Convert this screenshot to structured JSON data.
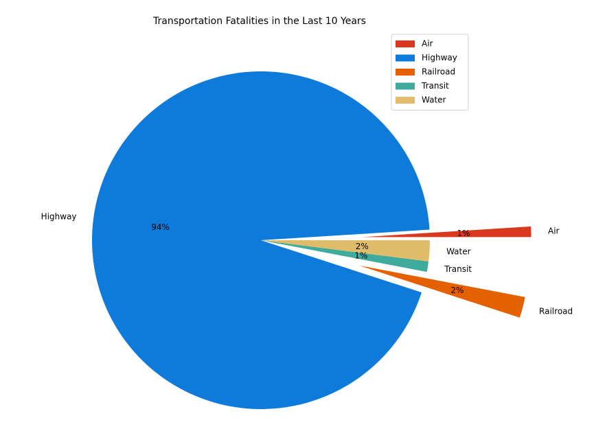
{
  "chart_data": {
    "type": "pie",
    "title": "Transportation Fatalities in the Last 10 Years",
    "start_angle_deg": 0,
    "direction": "counterclockwise",
    "categories": [
      "Air",
      "Highway",
      "Railroad",
      "Transit",
      "Water"
    ],
    "values": [
      1,
      94,
      2,
      1,
      2
    ],
    "percent_labels": [
      "1%",
      "94%",
      "2%",
      "1%",
      "2%"
    ],
    "exploded": [
      true,
      false,
      true,
      false,
      false
    ],
    "colors": [
      "#d9381e",
      "#0e7ad9",
      "#e56100",
      "#3fab9d",
      "#e0bc6a"
    ],
    "legend": {
      "placement": "top-right",
      "entries": [
        "Air",
        "Highway",
        "Railroad",
        "Transit",
        "Water"
      ]
    }
  }
}
